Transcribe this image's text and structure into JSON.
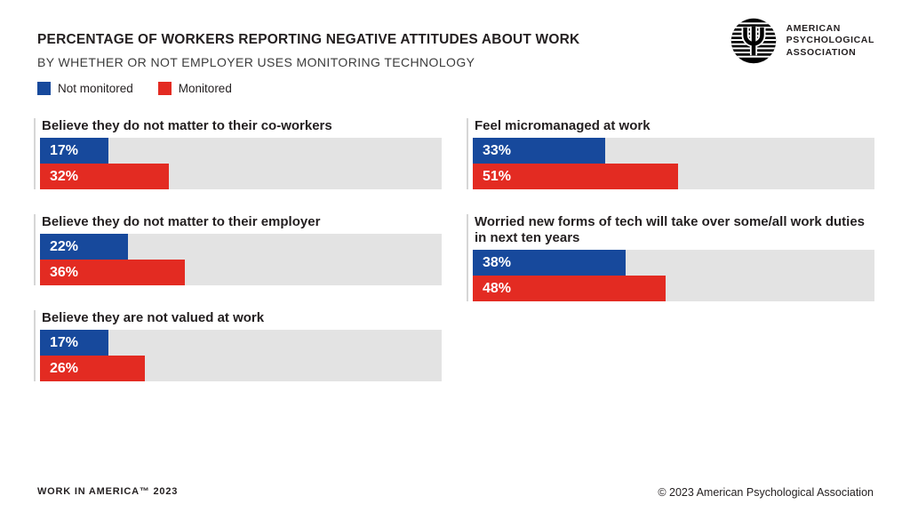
{
  "header": {
    "title": "PERCENTAGE OF WORKERS REPORTING NEGATIVE ATTITUDES ABOUT WORK",
    "subtitle": "BY WHETHER OR NOT EMPLOYER USES MONITORING TECHNOLOGY"
  },
  "logo": {
    "line1": "AMERICAN",
    "line2": "PSYCHOLOGICAL",
    "line3": "ASSOCIATION"
  },
  "legend": {
    "items": [
      {
        "label": "Not monitored",
        "color": "#17499c"
      },
      {
        "label": "Monitored",
        "color": "#e32b22"
      }
    ]
  },
  "colors": {
    "not_monitored_blue": "#17499c",
    "monitored_red": "#e32b22",
    "track_gray": "#e3e3e3",
    "text_dark": "#231f20"
  },
  "chart_data": {
    "type": "bar",
    "orientation": "horizontal",
    "unit": "%",
    "xlim": [
      0,
      100
    ],
    "legend_position": "top-left",
    "categories": [
      "Believe they do not matter to their co-workers",
      "Believe they do not matter to their employer",
      "Believe they are not valued at work",
      "Feel micromanaged at work",
      "Worried new forms of tech will take over some/all work duties in next ten years"
    ],
    "series": [
      {
        "name": "Not monitored",
        "values": [
          17,
          22,
          17,
          33,
          38
        ]
      },
      {
        "name": "Monitored",
        "values": [
          32,
          36,
          26,
          51,
          48
        ]
      }
    ],
    "groups": [
      {
        "column": "left",
        "label": "Believe they do not matter to their co-workers",
        "not_monitored": 17,
        "monitored": 32
      },
      {
        "column": "left",
        "label": "Believe they do not matter to their employer",
        "not_monitored": 22,
        "monitored": 36
      },
      {
        "column": "left",
        "label": "Believe they are not valued at work",
        "not_monitored": 17,
        "monitored": 26
      },
      {
        "column": "right",
        "label": "Feel micromanaged at work",
        "not_monitored": 33,
        "monitored": 51
      },
      {
        "column": "right",
        "label": "Worried new forms of tech will take over some/all work duties in next ten years",
        "not_monitored": 38,
        "monitored": 48
      }
    ]
  },
  "footer": {
    "left": "WORK IN AMERICA™ 2023",
    "right": "© 2023 American Psychological Association"
  }
}
